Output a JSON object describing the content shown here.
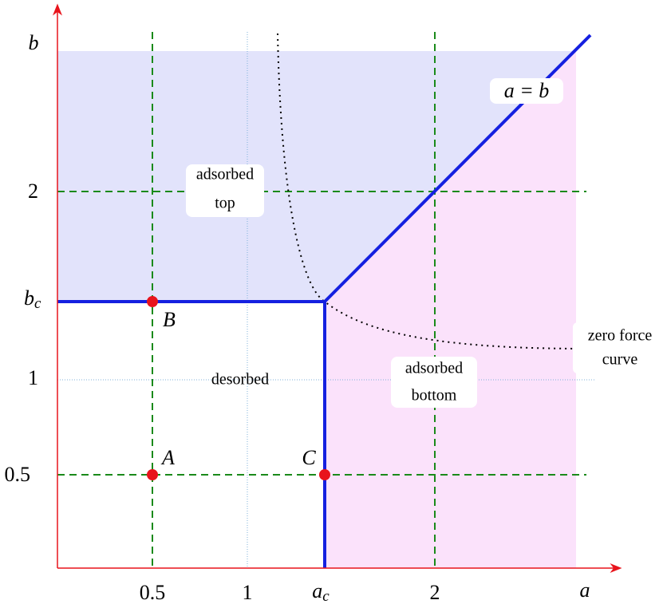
{
  "axes": {
    "x_label": "a",
    "y_label": "b",
    "x_ticks": [
      "0.5",
      "1",
      {
        "base": "a",
        "sub": "c"
      },
      "2"
    ],
    "y_ticks": [
      "0.5",
      "1",
      {
        "base": "b",
        "sub": "c"
      },
      "2"
    ]
  },
  "regions": {
    "adsorbed_top": [
      "adsorbed",
      "top"
    ],
    "desorbed": "desorbed",
    "adsorbed_bottom": [
      "adsorbed",
      "bottom"
    ]
  },
  "curves": {
    "diagonal": "a = b",
    "zero_force": [
      "zero force",
      "curve"
    ]
  },
  "points": [
    "A",
    "B",
    "C"
  ]
}
